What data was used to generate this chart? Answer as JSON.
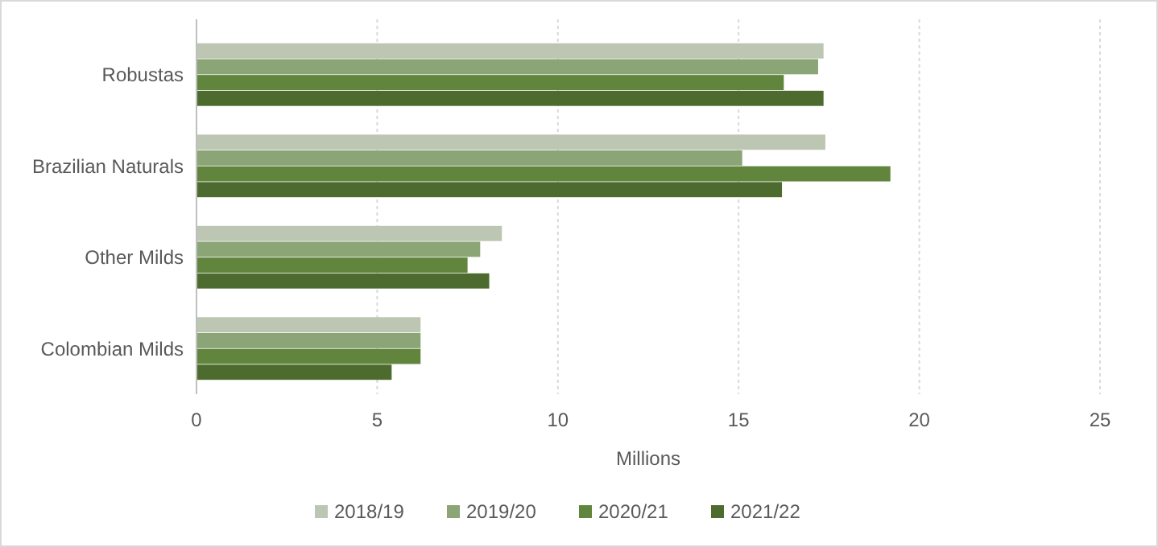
{
  "chart_data": {
    "type": "bar",
    "orientation": "horizontal",
    "xlabel": "Millions",
    "categories": [
      "Robustas",
      "Brazilian Naturals",
      "Other Milds",
      "Colombian Milds"
    ],
    "series": [
      {
        "name": "2018/19",
        "color": "#bcc6b2",
        "values": [
          17.35,
          17.4,
          8.45,
          6.2
        ]
      },
      {
        "name": "2019/20",
        "color": "#8ba576",
        "values": [
          17.2,
          15.1,
          7.85,
          6.2
        ]
      },
      {
        "name": "2020/21",
        "color": "#62853e",
        "values": [
          16.25,
          19.2,
          7.5,
          6.2
        ]
      },
      {
        "name": "2021/22",
        "color": "#4e6b2f",
        "values": [
          17.35,
          16.2,
          8.1,
          5.4
        ]
      }
    ],
    "xlim": [
      0,
      25
    ],
    "xticks": [
      0,
      5,
      10,
      15,
      20,
      25
    ],
    "grid": "x",
    "legend": "bottom"
  }
}
